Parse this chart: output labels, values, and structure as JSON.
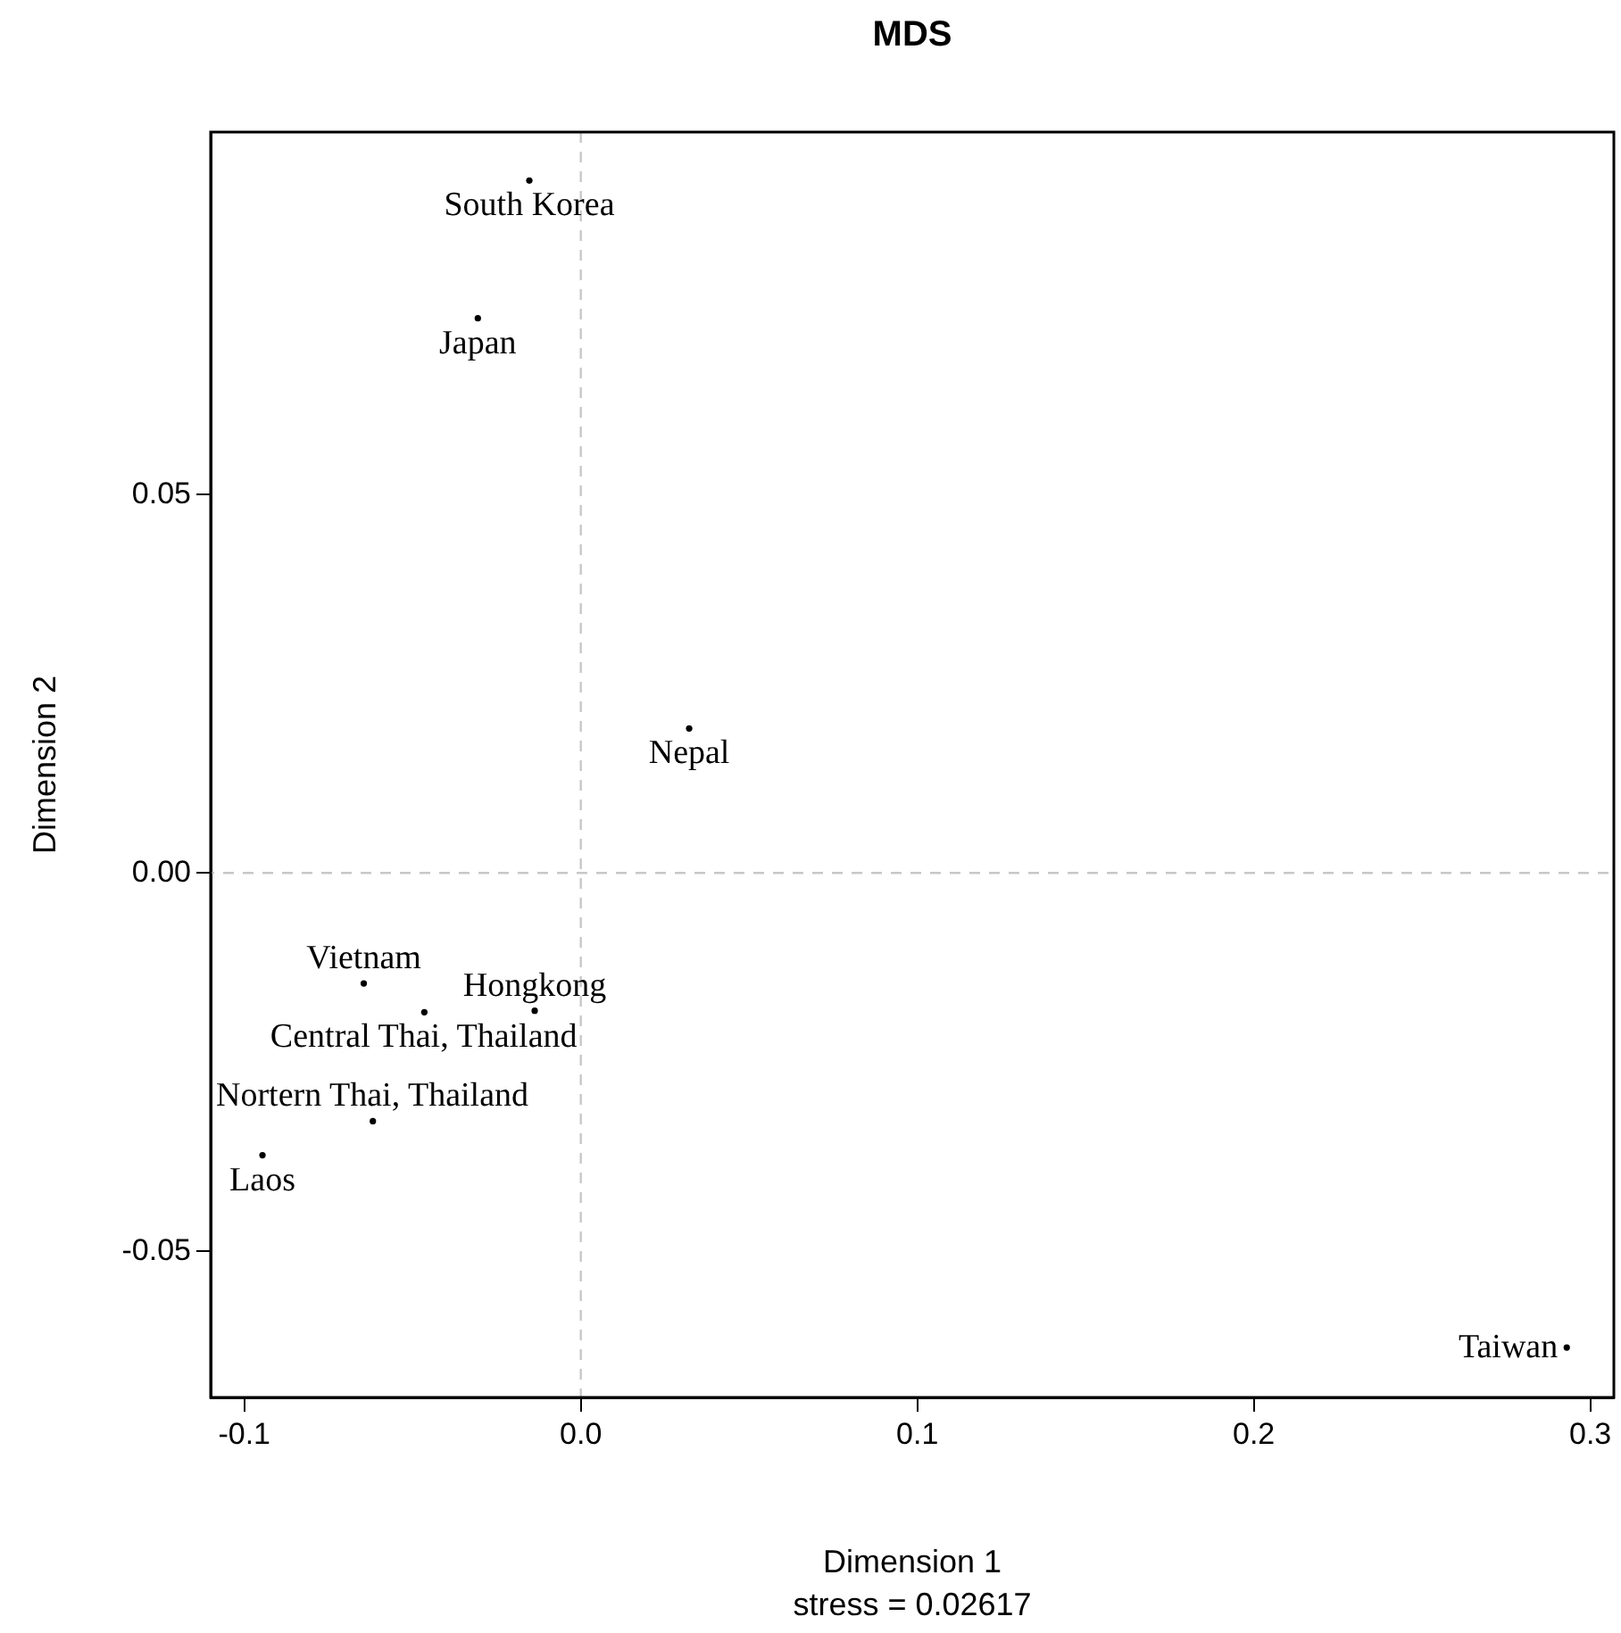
{
  "chart_data": {
    "type": "scatter",
    "title": "MDS",
    "xlabel": "Dimension 1",
    "ylabel": "Dimension 2",
    "x": [
      -0.0153,
      -0.0306,
      0.0322,
      -0.0465,
      -0.0645,
      -0.0137,
      -0.0618,
      -0.0946,
      0.293
    ],
    "values": [
      0.0915,
      0.0733,
      0.0191,
      -0.0184,
      -0.0146,
      -0.0182,
      -0.0328,
      -0.0373,
      -0.0627
    ],
    "color": "#000000",
    "marker": "circle",
    "xlim": [
      -0.11,
      0.307
    ],
    "xticks": [
      -0.1,
      {
        "value": 0,
        "label": "0.0"
      },
      0.1,
      0.2,
      0.3
    ],
    "ylim": [
      -0.0693,
      0.0979
    ],
    "yticks": [
      -0.05,
      {
        "value": 0,
        "label": "0.00"
      },
      0.05
    ],
    "grid": false,
    "legend": false,
    "ref_lines": [
      {
        "axis": "x",
        "value": 0,
        "color": "#c8c8c8",
        "line_style": "dashed"
      },
      {
        "axis": "y",
        "value": 0,
        "color": "#c8c8c8",
        "line_style": "dashed"
      }
    ],
    "annotations": [
      {
        "text": "South Korea",
        "x": -0.0153,
        "y": 0.0915
      },
      {
        "text": "Japan",
        "x": -0.0306,
        "y": 0.0733
      },
      {
        "text": "Nepal",
        "x": 0.0322,
        "y": 0.0191
      },
      {
        "text": "Central Thai, Thailand",
        "x": -0.0465,
        "y": -0.0184
      },
      {
        "text": "Vietnam",
        "x": -0.0645,
        "y": -0.0146
      },
      {
        "text": "Hongkong",
        "x": -0.0137,
        "y": -0.0182
      },
      {
        "text": "Nortern Thai, Thailand",
        "x": -0.0618,
        "y": -0.0328
      },
      {
        "text": "Laos",
        "x": -0.0946,
        "y": -0.0373
      },
      {
        "text": "Taiwan",
        "x": 0.293,
        "y": -0.0627
      },
      "stress = 0.02617"
    ]
  }
}
